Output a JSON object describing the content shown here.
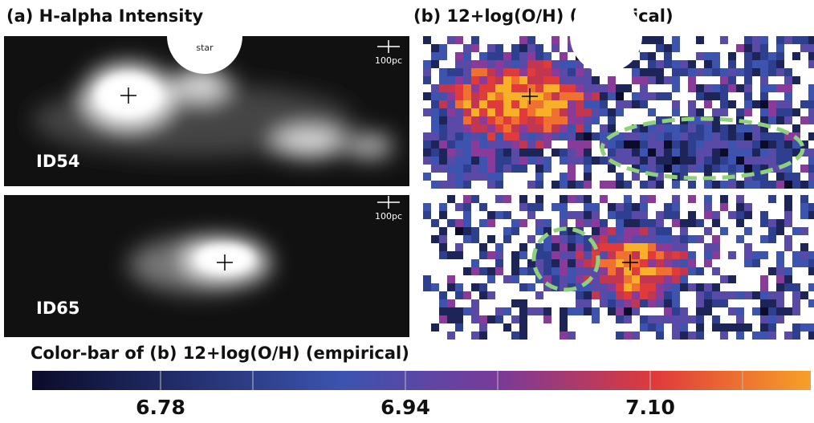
{
  "panels": {
    "a": {
      "title": "(a) H-alpha Intensity",
      "star": "star",
      "scale_top": "100pc",
      "scale_bottom": "100pc",
      "id_top": "ID54",
      "id_bottom": "ID65"
    },
    "b": {
      "title": "(b) 12+log(O/H) (empirical)"
    }
  },
  "colorbar": {
    "title": "Color-bar of (b) 12+log(O/H) (empirical)",
    "ticks": [
      "6.78",
      "6.94",
      "7.10"
    ]
  }
}
